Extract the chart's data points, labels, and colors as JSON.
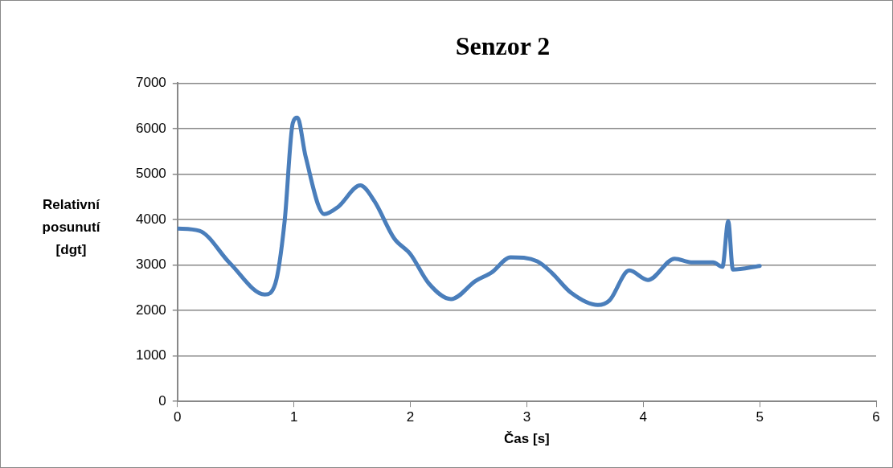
{
  "chart_data": {
    "type": "line",
    "title": "Senzor 2",
    "xlabel": "Čas [s]",
    "ylabel": "Relativní posunutí [dgt]",
    "x": [
      0,
      0.19,
      0.45,
      0.75,
      0.84,
      0.92,
      0.99,
      1.03,
      1.1,
      1.26,
      1.38,
      1.57,
      1.69,
      1.86,
      2.0,
      2.16,
      2.35,
      2.56,
      2.7,
      2.86,
      3.09,
      3.21,
      3.38,
      3.61,
      3.71,
      3.88,
      4.04,
      4.27,
      4.41,
      4.6,
      4.68,
      4.73,
      4.77,
      5.0
    ],
    "series": [
      {
        "color": "#4a7ebb",
        "values": [
          3800,
          3750,
          3040,
          2350,
          2590,
          3960,
          6120,
          6240,
          5390,
          4120,
          4280,
          4750,
          4410,
          3590,
          3240,
          2590,
          2250,
          2650,
          2840,
          3170,
          3080,
          2840,
          2390,
          2120,
          2220,
          2880,
          2670,
          3140,
          3060,
          3060,
          2960,
          3960,
          2900,
          2980
        ]
      }
    ],
    "xlim": [
      0,
      6
    ],
    "xticks": [
      0,
      1,
      2,
      3,
      4,
      5,
      6
    ],
    "ylim": [
      0,
      7000
    ],
    "yticks": [
      0,
      1000,
      2000,
      3000,
      4000,
      5000,
      6000,
      7000
    ],
    "grid": "y",
    "legend": false,
    "marker": "none",
    "line_style": "solid"
  }
}
